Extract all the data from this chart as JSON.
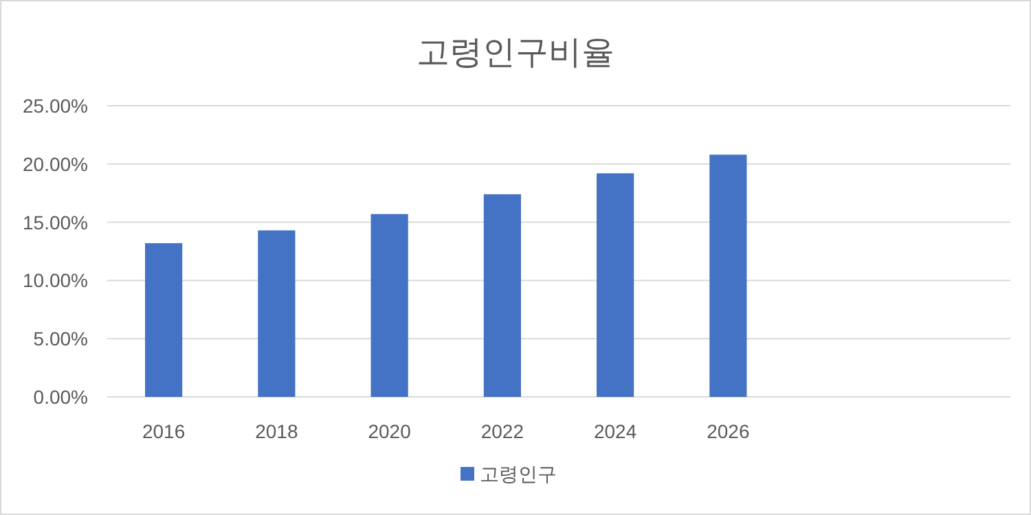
{
  "chart_data": {
    "type": "bar",
    "title": "고령인구비율",
    "categories": [
      "2016",
      "2018",
      "2020",
      "2022",
      "2024",
      "2026",
      null,
      null
    ],
    "series": [
      {
        "name": "고령인구",
        "color": "#4472c4",
        "values": [
          13.2,
          14.3,
          15.7,
          17.4,
          19.2,
          20.8,
          null,
          null
        ]
      }
    ],
    "ylim": [
      0,
      25
    ],
    "yticks": [
      {
        "value": 0,
        "label": "0.00%"
      },
      {
        "value": 5,
        "label": "5.00%"
      },
      {
        "value": 10,
        "label": "10.00%"
      },
      {
        "value": 15,
        "label": "15.00%"
      },
      {
        "value": 20,
        "label": "20.00%"
      },
      {
        "value": 25,
        "label": "25.00%"
      }
    ],
    "grid": "y",
    "legend": "bottom"
  }
}
